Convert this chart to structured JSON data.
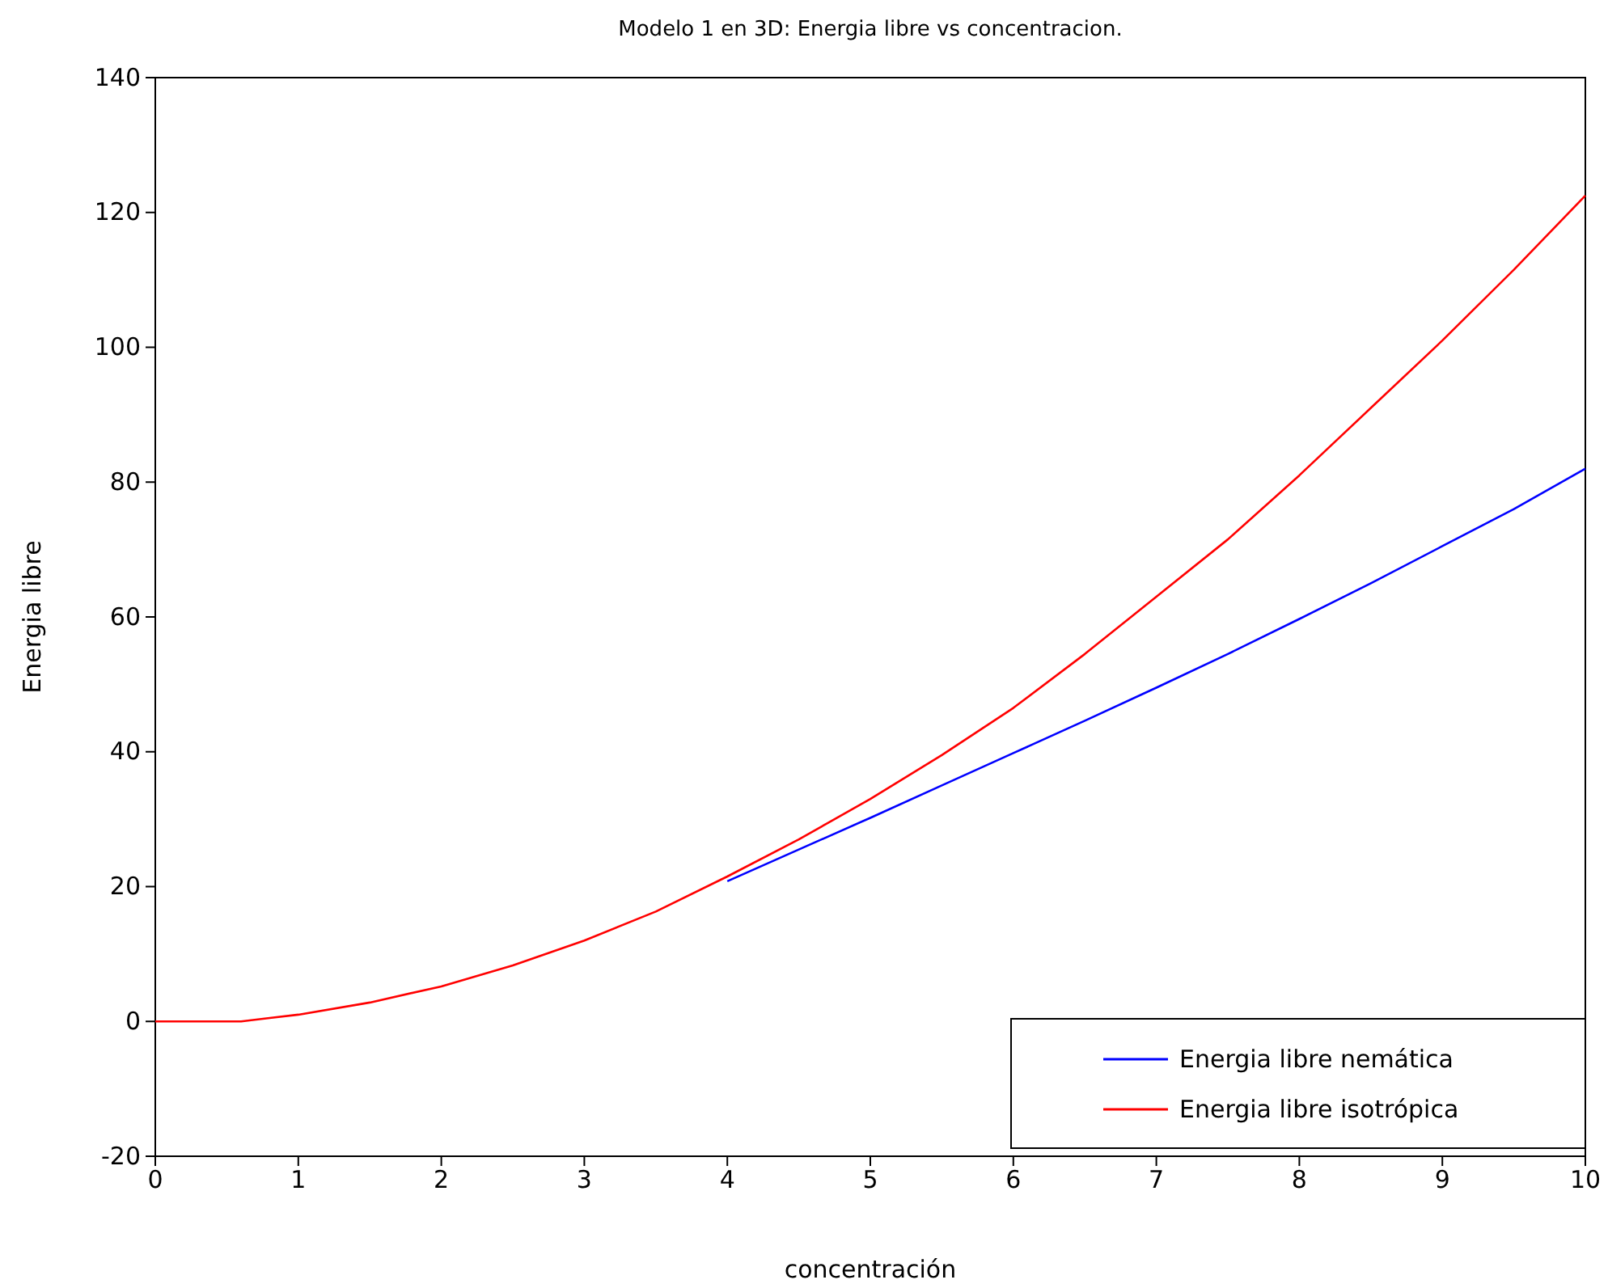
{
  "chart_data": {
    "type": "line",
    "title": "Modelo 1 en 3D: Energia libre vs concentracion.",
    "xlabel": "concentración",
    "ylabel": "Energia libre",
    "x": [
      0,
      0.3,
      0.6,
      0.8,
      1,
      1.5,
      2,
      2.5,
      3,
      3.5,
      4,
      4.5,
      5,
      5.5,
      6,
      6.5,
      7,
      7.5,
      8,
      8.5,
      9,
      9.5,
      10
    ],
    "series": [
      {
        "name": "Energia libre nemática",
        "color": "#0000ff",
        "values": [
          null,
          null,
          null,
          null,
          null,
          null,
          null,
          null,
          null,
          null,
          20.8,
          25.5,
          30.2,
          35,
          39.8,
          44.6,
          49.5,
          54.5,
          59.7,
          65,
          70.5,
          76,
          82
        ]
      },
      {
        "name": "Energia libre isotrópica",
        "color": "#ff0000",
        "values": [
          0,
          0,
          0,
          0.5,
          1,
          2.8,
          5.2,
          8.3,
          12,
          16.3,
          21.5,
          27,
          33,
          39.5,
          46.5,
          54.5,
          63,
          71.5,
          81,
          91,
          101,
          111.5,
          122.5
        ]
      }
    ],
    "xlim": [
      0,
      10
    ],
    "xticks": [
      0,
      1,
      2,
      3,
      4,
      5,
      6,
      7,
      8,
      9,
      10
    ],
    "ylim": [
      -20,
      140
    ],
    "yticks": [
      -20,
      0,
      20,
      40,
      60,
      80,
      100,
      120,
      140
    ],
    "legend": "bottom right",
    "grid": false,
    "marker": "none",
    "line_style": "solid"
  }
}
